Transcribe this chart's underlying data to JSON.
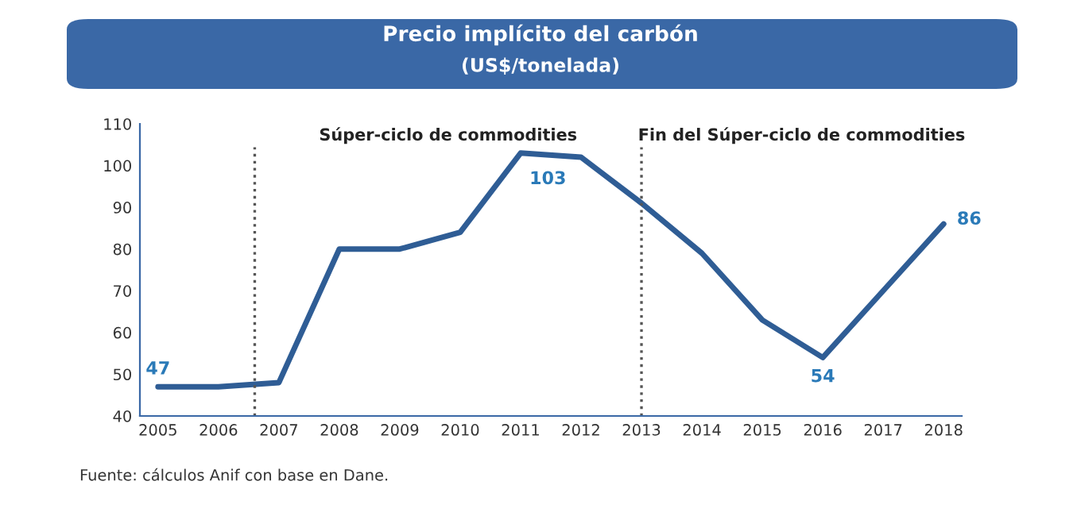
{
  "chart_data": {
    "type": "line",
    "title": "Precio implícito del carbón",
    "subtitle": "(US$/tonelada)",
    "x": [
      2005,
      2006,
      2007,
      2008,
      2009,
      2010,
      2011,
      2012,
      2013,
      2014,
      2015,
      2016,
      2017,
      2018
    ],
    "series": [
      {
        "color": "#2f5d95",
        "values": [
          47,
          47,
          48,
          80,
          80,
          84,
          103,
          102,
          91,
          79,
          63,
          54,
          70,
          86
        ],
        "value_labels": [
          "47",
          null,
          null,
          null,
          null,
          null,
          "103",
          null,
          null,
          null,
          null,
          "54",
          null,
          "86"
        ]
      }
    ],
    "xlim": [
      2004.7,
      2018.3
    ],
    "xticks": [
      2005,
      2006,
      2007,
      2008,
      2009,
      2010,
      2011,
      2012,
      2013,
      2014,
      2015,
      2016,
      2017,
      2018
    ],
    "ylim": [
      40,
      110
    ],
    "yticks": [
      40,
      50,
      60,
      70,
      80,
      90,
      100,
      110
    ],
    "ref_lines": [
      {
        "axis": "x",
        "value": 2006.6,
        "color": "#555555",
        "line_style": "dotted"
      },
      {
        "axis": "x",
        "value": 2013,
        "color": "#555555",
        "line_style": "dotted"
      }
    ],
    "annotations": [
      "Súper-ciclo de commodities",
      "Fin del Súper-ciclo de commodities",
      "Fuente: cálculos Anif con base en Dane."
    ],
    "grid": false,
    "legend": false,
    "marker": "none",
    "line_style": "solid"
  }
}
